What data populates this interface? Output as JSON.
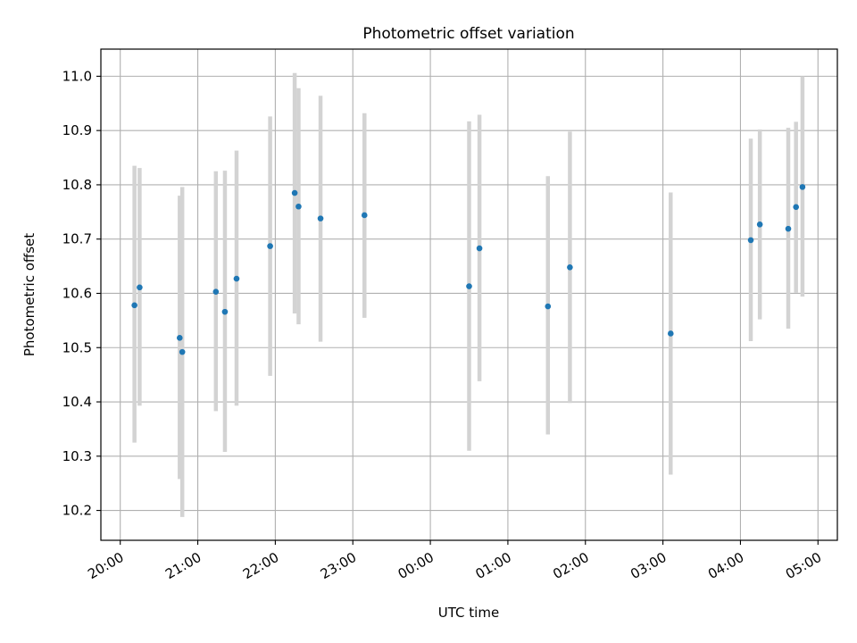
{
  "chart_data": {
    "type": "scatter",
    "title": "Photometric offset variation",
    "xlabel": "UTC time",
    "ylabel": "Photometric offset",
    "x_ticks": [
      "20:00",
      "21:00",
      "22:00",
      "23:00",
      "00:00",
      "01:00",
      "02:00",
      "03:00",
      "04:00",
      "05:00"
    ],
    "x_tick_times": [
      "20:00",
      "21:00",
      "22:00",
      "23:00",
      "24:00",
      "25:00",
      "26:00",
      "27:00",
      "28:00",
      "29:00"
    ],
    "xlim": [
      "19:45",
      "29:15"
    ],
    "y_ticks": [
      "10.2",
      "10.3",
      "10.4",
      "10.5",
      "10.6",
      "10.7",
      "10.8",
      "10.9",
      "11.0"
    ],
    "ylim": [
      10.145,
      11.05
    ],
    "grid": true,
    "point_color": "#1f77b4",
    "errorbar_color": "#d3d3d3",
    "grid_color": "#b0b0b0",
    "points": [
      {
        "x": "20:11",
        "y": 10.578,
        "low": 10.325,
        "high": 10.835
      },
      {
        "x": "20:15",
        "y": 10.611,
        "low": 10.393,
        "high": 10.831
      },
      {
        "x": "20:46",
        "y": 10.518,
        "low": 10.258,
        "high": 10.78
      },
      {
        "x": "20:48",
        "y": 10.492,
        "low": 10.188,
        "high": 10.796
      },
      {
        "x": "21:14",
        "y": 10.603,
        "low": 10.383,
        "high": 10.825
      },
      {
        "x": "21:21",
        "y": 10.566,
        "low": 10.308,
        "high": 10.826
      },
      {
        "x": "21:30",
        "y": 10.627,
        "low": 10.393,
        "high": 10.863
      },
      {
        "x": "21:56",
        "y": 10.687,
        "low": 10.448,
        "high": 10.926
      },
      {
        "x": "22:15",
        "y": 10.785,
        "low": 10.563,
        "high": 11.006
      },
      {
        "x": "22:18",
        "y": 10.76,
        "low": 10.543,
        "high": 10.978
      },
      {
        "x": "22:35",
        "y": 10.738,
        "low": 10.511,
        "high": 10.964
      },
      {
        "x": "23:09",
        "y": 10.744,
        "low": 10.555,
        "high": 10.932
      },
      {
        "x": "24:30",
        "y": 10.613,
        "low": 10.31,
        "high": 10.917
      },
      {
        "x": "24:38",
        "y": 10.683,
        "low": 10.438,
        "high": 10.929
      },
      {
        "x": "25:31",
        "y": 10.576,
        "low": 10.34,
        "high": 10.816
      },
      {
        "x": "25:48",
        "y": 10.648,
        "low": 10.398,
        "high": 10.898
      },
      {
        "x": "27:06",
        "y": 10.526,
        "low": 10.266,
        "high": 10.786
      },
      {
        "x": "28:08",
        "y": 10.698,
        "low": 10.512,
        "high": 10.885
      },
      {
        "x": "28:15",
        "y": 10.727,
        "low": 10.552,
        "high": 10.902
      },
      {
        "x": "28:37",
        "y": 10.719,
        "low": 10.535,
        "high": 10.905
      },
      {
        "x": "28:43",
        "y": 10.759,
        "low": 10.601,
        "high": 10.916
      },
      {
        "x": "28:48",
        "y": 10.796,
        "low": 10.594,
        "high": 11.0
      }
    ]
  }
}
